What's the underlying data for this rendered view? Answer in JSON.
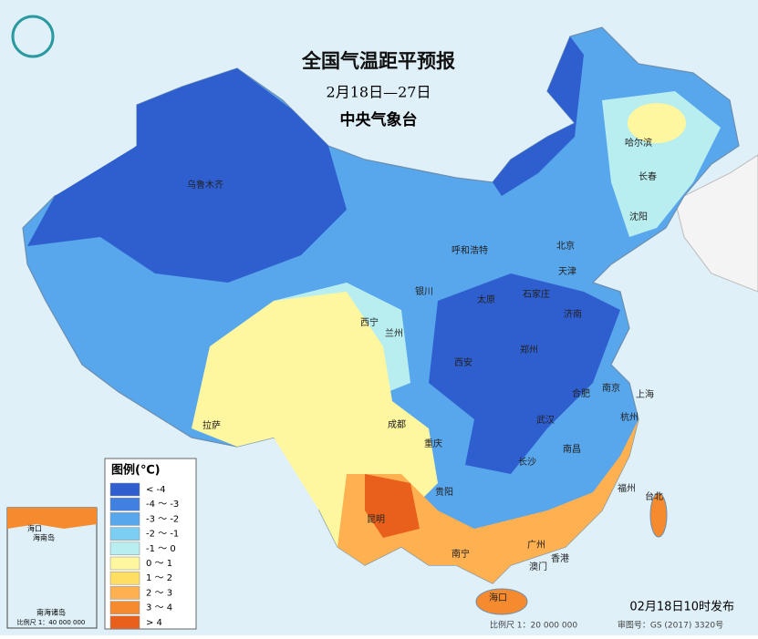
{
  "header": {
    "title": "全国气温距平预报",
    "subtitle": "2月18日—27日",
    "issuer": "中央气象台"
  },
  "legend": {
    "title": "图例(℃)",
    "items": [
      {
        "label": "< -4",
        "color": "#2f5fcf"
      },
      {
        "label": "-4 ～ -3",
        "color": "#3f80e0"
      },
      {
        "label": "-3 ～ -2",
        "color": "#58a6ec"
      },
      {
        "label": "-2 ～ -1",
        "color": "#7ccff2"
      },
      {
        "label": "-1 ～ 0",
        "color": "#b8eef0"
      },
      {
        "label": "0 ～ 1",
        "color": "#fff6a0"
      },
      {
        "label": "1 ～ 2",
        "color": "#ffdf62"
      },
      {
        "label": "2 ～ 3",
        "color": "#ffb050"
      },
      {
        "label": "3 ～ 4",
        "color": "#f58a2e"
      },
      {
        "label": "> 4",
        "color": "#e8601c"
      }
    ]
  },
  "cities": [
    "乌鲁木齐",
    "哈尔滨",
    "长春",
    "沈阳",
    "呼和浩特",
    "北京",
    "天津",
    "银川",
    "石家庄",
    "太原",
    "济南",
    "西宁",
    "兰州",
    "西安",
    "郑州",
    "合肥",
    "南京",
    "上海",
    "拉萨",
    "成都",
    "重庆",
    "武汉",
    "杭州",
    "长沙",
    "南昌",
    "贵阳",
    "福州",
    "台北",
    "昆明",
    "南宁",
    "广州",
    "香港",
    "澳门",
    "海口"
  ],
  "inset": {
    "labels": [
      "海口",
      "海南岛",
      "南海诸岛"
    ],
    "scale": "比例尺 1：40 000 000"
  },
  "footer": {
    "issued": "02月18日10时发布",
    "scale": "比例尺 1：20 000 000",
    "approval": "审图号：GS (2017) 3320号"
  }
}
